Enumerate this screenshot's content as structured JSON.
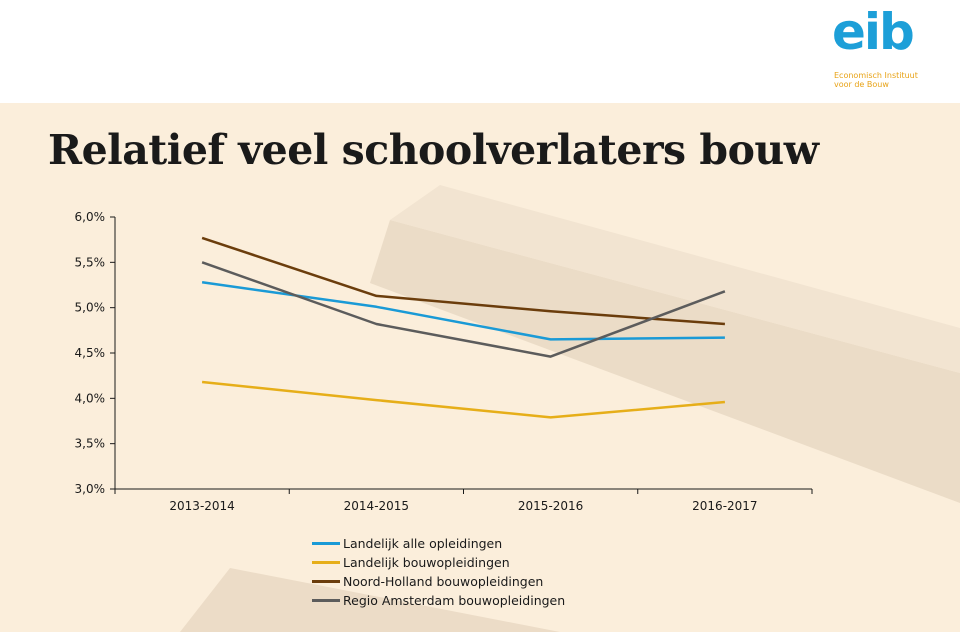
{
  "logo": {
    "word": "eib",
    "subtitle_lines": [
      "Economisch Instituut",
      "voor de Bouw"
    ],
    "brand_color": "#1d9fd8",
    "sub_color": "#e8a317"
  },
  "slide": {
    "title": "Relatief veel schoolverlaters bouw",
    "background": "#fbeedb"
  },
  "chart_data": {
    "type": "line",
    "categories": [
      "2013-2014",
      "2014-2015",
      "2015-2016",
      "2016-2017"
    ],
    "y_ticks": [
      "3,0%",
      "3,5%",
      "4,0%",
      "4,5%",
      "5,0%",
      "5,5%",
      "6,0%"
    ],
    "ylim": [
      3.0,
      6.0
    ],
    "grid": false,
    "legend_position": "bottom",
    "series": [
      {
        "name": "Landelijk alle opleidingen",
        "color": "#1a9ad6",
        "values": [
          5.28,
          5.01,
          4.65,
          4.67
        ]
      },
      {
        "name": "Landelijk bouwopleidingen",
        "color": "#e6ae19",
        "values": [
          4.18,
          3.98,
          3.79,
          3.96
        ]
      },
      {
        "name": "Noord-Holland bouwopleidingen",
        "color": "#6b3d0c",
        "values": [
          5.77,
          5.13,
          4.96,
          4.82
        ]
      },
      {
        "name": "Regio Amsterdam bouwopleidingen",
        "color": "#5c5c5c",
        "values": [
          5.5,
          4.82,
          4.46,
          5.18
        ]
      }
    ]
  }
}
